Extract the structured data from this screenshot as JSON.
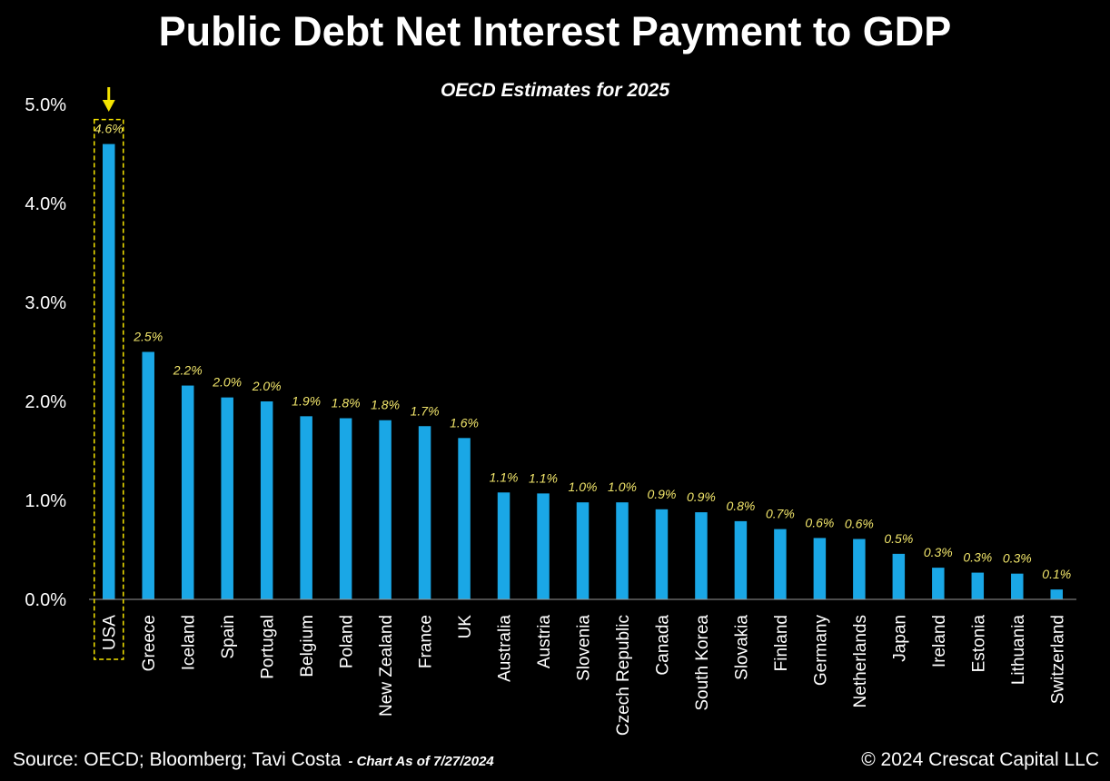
{
  "header": {
    "title": "Public Debt Net Interest Payment to GDP",
    "subtitle": "OECD Estimates for 2025"
  },
  "footer": {
    "source": "Source: OECD; Bloomberg; Tavi Costa",
    "chart_date": "- Chart As of 7/27/2024",
    "copyright": "© 2024 Crescat Capital LLC"
  },
  "colors": {
    "background": "#000000",
    "bar": "#1aa7e6",
    "data_label": "#f2e66b",
    "highlight": "#f5e400",
    "axis": "#9a9a9a"
  },
  "icons": {
    "highlight_marker": "down-arrow-icon"
  },
  "chart_data": {
    "type": "bar",
    "title": "Public Debt Net Interest Payment to GDP",
    "subtitle": "OECD Estimates for 2025",
    "xlabel": "",
    "ylabel": "",
    "ylim": [
      0,
      5
    ],
    "yticks": [
      "0.0%",
      "1.0%",
      "2.0%",
      "3.0%",
      "4.0%",
      "5.0%"
    ],
    "grid": false,
    "highlighted_category": "USA",
    "categories": [
      "USA",
      "Greece",
      "Iceland",
      "Spain",
      "Portugal",
      "Belgium",
      "Poland",
      "New Zealand",
      "France",
      "UK",
      "Australia",
      "Austria",
      "Slovenia",
      "Czech Republic",
      "Canada",
      "South Korea",
      "Slovakia",
      "Finland",
      "Germany",
      "Netherlands",
      "Japan",
      "Ireland",
      "Estonia",
      "Lithuania",
      "Switzerland"
    ],
    "values": [
      4.6,
      2.5,
      2.16,
      2.04,
      2.0,
      1.85,
      1.83,
      1.81,
      1.75,
      1.63,
      1.08,
      1.07,
      0.98,
      0.98,
      0.91,
      0.88,
      0.79,
      0.71,
      0.62,
      0.61,
      0.46,
      0.32,
      0.27,
      0.26,
      0.1
    ],
    "data_labels": [
      "4.6%",
      "2.5%",
      "2.2%",
      "2.0%",
      "2.0%",
      "1.9%",
      "1.8%",
      "1.8%",
      "1.7%",
      "1.6%",
      "1.1%",
      "1.1%",
      "1.0%",
      "1.0%",
      "0.9%",
      "0.9%",
      "0.8%",
      "0.7%",
      "0.6%",
      "0.6%",
      "0.5%",
      "0.3%",
      "0.3%",
      "0.3%",
      "0.1%"
    ]
  }
}
